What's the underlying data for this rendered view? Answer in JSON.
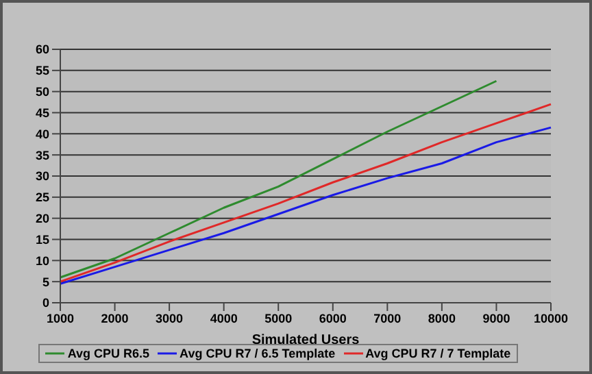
{
  "chart_data": {
    "type": "line",
    "xlabel": "Simulated Users",
    "categories": [
      "1000",
      "2000",
      "3000",
      "4000",
      "5000",
      "6000",
      "7000",
      "8000",
      "9000",
      "10000"
    ],
    "series": [
      {
        "name": "Avg CPU R6.5",
        "color": "#2e8b2e",
        "values": [
          6,
          10.5,
          16.5,
          22.5,
          27.5,
          34,
          40.5,
          46.5,
          52.5,
          null
        ]
      },
      {
        "name": "Avg CPU R7 / 6.5 Template",
        "color": "#1a1ae6",
        "values": [
          4.5,
          8.5,
          12.5,
          16.5,
          21,
          25.5,
          29.5,
          33,
          38,
          41.5
        ]
      },
      {
        "name": "Avg CPU R7 / 7 Template",
        "color": "#e02828",
        "values": [
          5,
          9.5,
          14.5,
          19,
          23.5,
          28.5,
          33,
          38,
          42.5,
          47
        ]
      }
    ],
    "ylim": [
      0,
      60
    ],
    "yticks": [
      0,
      5,
      10,
      15,
      20,
      25,
      30,
      35,
      40,
      45,
      50,
      55,
      60
    ],
    "grid": "y",
    "legend": "bottom",
    "marker": "none",
    "line_style": "solid"
  }
}
